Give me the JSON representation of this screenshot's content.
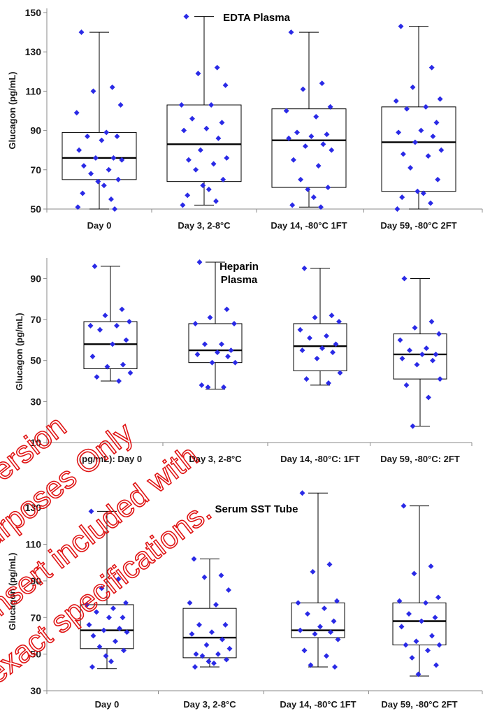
{
  "colors": {
    "point": "#2a2ae6",
    "box": "#000000",
    "watermark": "#e01414"
  },
  "watermark": {
    "icon": "diagonal-outline-text-stamp",
    "lines": [
      "Version",
      "purposes Only",
      "Insert included with",
      "exact specifications."
    ]
  },
  "chart_data": [
    {
      "type": "box",
      "title": "EDTA Plasma",
      "ylabel": "Glucagon (pg/mL)",
      "ylim": [
        50,
        150
      ],
      "yticks": [
        50,
        70,
        90,
        110,
        130,
        150
      ],
      "categories": [
        "Day 0",
        "Day 3, 2-8°C",
        "Day 14, -80°C 1FT",
        "Day 59, -80°C 2FT"
      ],
      "boxes": [
        {
          "min": 50,
          "q1": 65,
          "median": 76,
          "q3": 89,
          "max": 140
        },
        {
          "min": 52,
          "q1": 64,
          "median": 83,
          "q3": 103,
          "max": 148
        },
        {
          "min": 51,
          "q1": 61,
          "median": 85,
          "q3": 101,
          "max": 140
        },
        {
          "min": 50,
          "q1": 59,
          "median": 84,
          "q3": 102,
          "max": 143
        }
      ],
      "points": [
        [
          140,
          112,
          110,
          103,
          99,
          89,
          87,
          87,
          85,
          80,
          76,
          76,
          75,
          72,
          70,
          68,
          65,
          64,
          62,
          58,
          55,
          51,
          50
        ],
        [
          148,
          122,
          119,
          113,
          103,
          103,
          96,
          94,
          91,
          90,
          86,
          80,
          76,
          75,
          73,
          70,
          65,
          62,
          60,
          57,
          54,
          52
        ],
        [
          140,
          114,
          111,
          102,
          100,
          97,
          89,
          88,
          87,
          86,
          83,
          82,
          80,
          75,
          72,
          65,
          61,
          60,
          56,
          52,
          51
        ],
        [
          143,
          122,
          112,
          106,
          105,
          102,
          101,
          94,
          90,
          89,
          87,
          84,
          80,
          78,
          77,
          71,
          65,
          59,
          58,
          56,
          53,
          50
        ]
      ]
    },
    {
      "type": "box",
      "title": "Heparin Plasma",
      "ylabel": "Glucagon (pg/mL)",
      "ylim": [
        10,
        98
      ],
      "yticks": [
        10,
        30,
        50,
        70,
        90
      ],
      "categories": [
        "(pg/mL): Day 0",
        "Day 3, 2-8°C",
        "Day 14, -80°C: 1FT",
        "Day 59, -80°C: 2FT"
      ],
      "boxes": [
        {
          "min": 40,
          "q1": 46,
          "median": 58,
          "q3": 69,
          "max": 96
        },
        {
          "min": 36,
          "q1": 49,
          "median": 55,
          "q3": 68,
          "max": 98
        },
        {
          "min": 38,
          "q1": 45,
          "median": 57,
          "q3": 68,
          "max": 95
        },
        {
          "min": 18,
          "q1": 41,
          "median": 53,
          "q3": 63,
          "max": 90
        }
      ],
      "points": [
        [
          96,
          75,
          72,
          69,
          67,
          67,
          65,
          60,
          58,
          52,
          48,
          47,
          44,
          42,
          40
        ],
        [
          98,
          75,
          71,
          68,
          68,
          58,
          58,
          55,
          54,
          53,
          52,
          49,
          49,
          38,
          37,
          37
        ],
        [
          95,
          72,
          71,
          69,
          65,
          62,
          61,
          58,
          56,
          55,
          54,
          51,
          44,
          41,
          39
        ],
        [
          90,
          69,
          66,
          63,
          60,
          56,
          55,
          53,
          53,
          51,
          50,
          48,
          41,
          38,
          32,
          18
        ]
      ]
    },
    {
      "type": "box",
      "title": "Serum SST Tube",
      "ylabel": "Glucagon (pg/mL)",
      "ylim": [
        30,
        140
      ],
      "yticks": [
        30,
        50,
        70,
        90,
        110,
        130
      ],
      "categories": [
        "Day 0",
        "Day 3, 2-8°C",
        "Day 14, -80°C 1FT",
        "Day 59, -80°C 2FT"
      ],
      "boxes": [
        {
          "min": 42,
          "q1": 53,
          "median": 63,
          "q3": 77,
          "max": 128
        },
        {
          "min": 43,
          "q1": 48,
          "median": 59,
          "q3": 75,
          "max": 102
        },
        {
          "min": 43,
          "q1": 59,
          "median": 63,
          "q3": 78,
          "max": 138
        },
        {
          "min": 38,
          "q1": 55,
          "median": 68,
          "q3": 78,
          "max": 131
        }
      ],
      "points": [
        [
          128,
          91,
          86,
          78,
          77,
          75,
          73,
          70,
          70,
          66,
          64,
          63,
          62,
          60,
          57,
          54,
          52,
          49,
          46,
          43
        ],
        [
          102,
          93,
          92,
          85,
          78,
          77,
          66,
          66,
          62,
          61,
          58,
          55,
          53,
          50,
          50,
          49,
          47,
          46,
          45,
          43
        ],
        [
          138,
          99,
          95,
          79,
          78,
          75,
          72,
          68,
          65,
          63,
          62,
          61,
          58,
          52,
          49,
          44,
          43
        ],
        [
          131,
          98,
          94,
          81,
          79,
          78,
          72,
          70,
          68,
          65,
          60,
          57,
          55,
          55,
          52,
          48,
          44,
          39
        ]
      ]
    }
  ]
}
